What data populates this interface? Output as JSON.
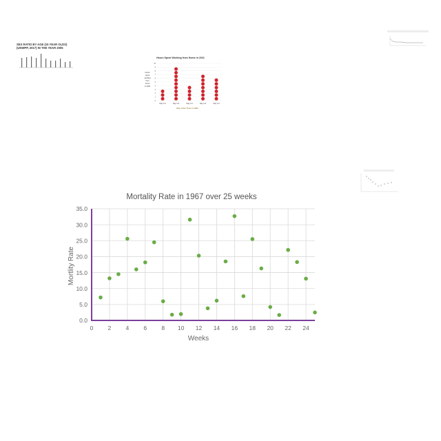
{
  "thumbnails": {
    "sex_ratio": {
      "title_line1": "SEX RATIO BY AGE (15 YEAR OLDS)",
      "title_line2": "(UNWPP, 2017) IN THE YEAR 2005"
    },
    "hours_home": {
      "title": "Hours Spent Working from Home in 2021",
      "ylabel_lines": [
        "Hours",
        "spent",
        "working",
        "from",
        "home",
        "in 2021"
      ],
      "xlabel": "Day of the Time in 2021",
      "categories": [
        "Day 1-6",
        "Day 1-6",
        "Day 1-6",
        "Day 1-6",
        "Day 1-6"
      ],
      "dot_counts": [
        3,
        9,
        4,
        7,
        6
      ]
    }
  },
  "chart_data": {
    "type": "scatter",
    "title": "Mortality Rate in 1967 over 25 weeks",
    "xlabel": "Weeks",
    "ylabel": "Mortlity  Rate",
    "xlim": [
      0,
      25
    ],
    "ylim": [
      0,
      35
    ],
    "x_ticks": [
      "0",
      "2",
      "4",
      "6",
      "8",
      "10",
      "12",
      "14",
      "16",
      "18",
      "20",
      "22",
      "24"
    ],
    "y_ticks": [
      "0.0",
      "5.0",
      "10.0",
      "15.0",
      "20.0",
      "25.0",
      "30.0",
      "35.0"
    ],
    "grid": true,
    "point_color": "#6aac45",
    "axis_color": "#7b3f9e",
    "x": [
      1,
      2,
      3,
      4,
      5,
      6,
      7,
      8,
      9,
      10,
      11,
      12,
      13,
      14,
      15,
      16,
      17,
      18,
      19,
      20,
      21,
      22,
      23,
      24,
      25
    ],
    "y": [
      7.2,
      13.2,
      14.5,
      25.6,
      16.0,
      18.2,
      24.5,
      6.0,
      1.8,
      2.0,
      31.6,
      20.3,
      3.8,
      6.2,
      18.5,
      32.7,
      7.6,
      25.5,
      16.3,
      4.2,
      1.7,
      22.1,
      18.3,
      13.1,
      2.5
    ]
  }
}
